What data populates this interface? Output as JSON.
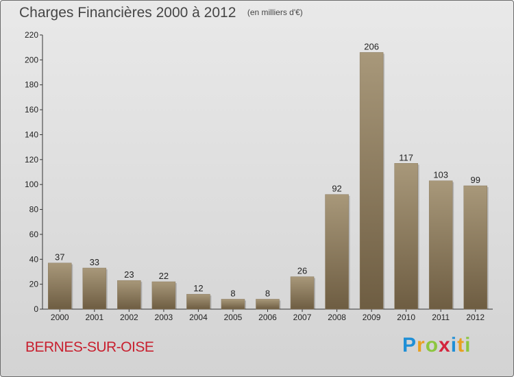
{
  "chart_data": {
    "type": "bar",
    "title": "Charges Financières 2000 à 2012",
    "subtitle": "(en milliers d'€)",
    "categories": [
      "2000",
      "2001",
      "2002",
      "2003",
      "2004",
      "2005",
      "2006",
      "2007",
      "2008",
      "2009",
      "2010",
      "2011",
      "2012"
    ],
    "values": [
      37,
      33,
      23,
      22,
      12,
      8,
      8,
      26,
      92,
      206,
      117,
      103,
      99
    ],
    "ylim": [
      0,
      220
    ],
    "yticks": [
      0,
      20,
      40,
      60,
      80,
      100,
      120,
      140,
      160,
      180,
      200,
      220
    ],
    "xlabel": "",
    "ylabel": "",
    "bar_color_top": "#a8987a",
    "bar_color_bottom": "#6e5d42"
  },
  "footer": {
    "commune": "BERNES-SUR-OISE",
    "logo_letters": [
      "P",
      "r",
      "o",
      "x",
      "i",
      "t",
      "i"
    ],
    "logo_colors": [
      "#1f8fd6",
      "#e8a020",
      "#8cc63f",
      "#d4243c",
      "#1f8fd6",
      "#e8a020",
      "#8cc63f"
    ]
  }
}
